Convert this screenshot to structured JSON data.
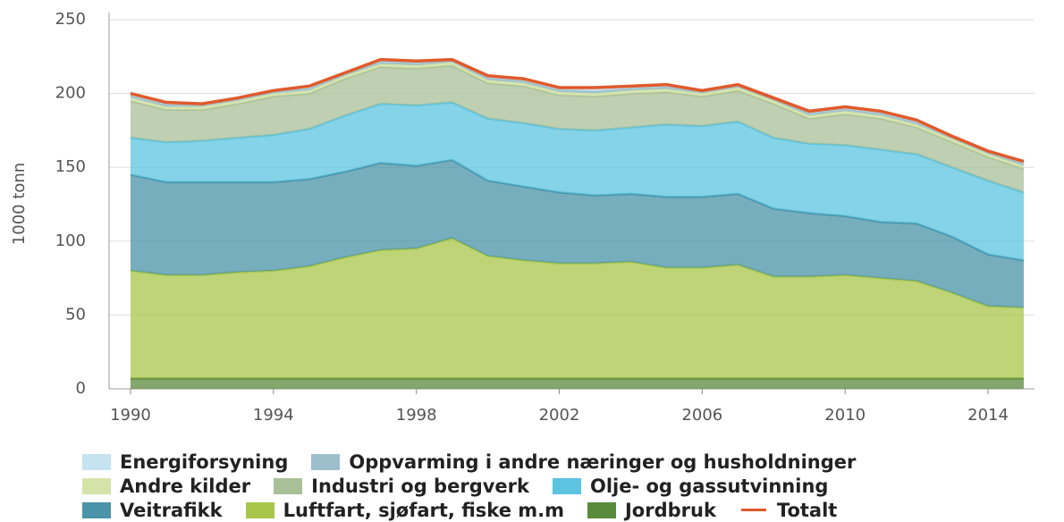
{
  "chart_data": {
    "type": "stacked_area",
    "ylabel": "1000 tonn",
    "x": [
      1990,
      1991,
      1992,
      1993,
      1994,
      1995,
      1996,
      1997,
      1998,
      1999,
      2000,
      2001,
      2002,
      2003,
      2004,
      2005,
      2006,
      2007,
      2008,
      2009,
      2010,
      2011,
      2012,
      2013,
      2014,
      2015
    ],
    "xlim": [
      1989.4,
      2015.3
    ],
    "xticks": [
      1990,
      1994,
      1998,
      2002,
      2006,
      2010,
      2014
    ],
    "ylim": [
      0,
      250
    ],
    "yticks": [
      0,
      50,
      100,
      150,
      200,
      250
    ],
    "grid": true,
    "series": [
      {
        "name": "Jordbruk",
        "color": "#5a8a3c",
        "values": [
          7,
          7,
          7,
          7,
          7,
          7,
          7,
          7,
          7,
          7,
          7,
          7,
          7,
          7,
          7,
          7,
          7,
          7,
          7,
          7,
          7,
          7,
          7,
          7,
          7,
          7
        ]
      },
      {
        "name": "Luftfart, sjøfart, fiske m.m",
        "color": "#a8c64a",
        "values": [
          73,
          70,
          70,
          72,
          73,
          76,
          82,
          87,
          88,
          95,
          83,
          80,
          78,
          78,
          79,
          75,
          75,
          77,
          69,
          69,
          70,
          68,
          66,
          58,
          49,
          48
        ]
      },
      {
        "name": "Veitrafikk",
        "color": "#4a93a8",
        "values": [
          65,
          63,
          63,
          61,
          60,
          59,
          58,
          59,
          56,
          53,
          51,
          50,
          48,
          46,
          46,
          48,
          48,
          48,
          46,
          43,
          40,
          38,
          39,
          38,
          35,
          32
        ]
      },
      {
        "name": "Olje- og gassutvinning",
        "color": "#5cc4e0",
        "values": [
          25,
          27,
          28,
          30,
          32,
          34,
          38,
          40,
          41,
          39,
          42,
          43,
          43,
          44,
          45,
          49,
          48,
          49,
          48,
          47,
          48,
          49,
          47,
          47,
          50,
          46
        ]
      },
      {
        "name": "Industri og bergverk",
        "color": "#a9bf98",
        "values": [
          25,
          22,
          21,
          23,
          26,
          24,
          25,
          25,
          25,
          25,
          24,
          25,
          23,
          23,
          23,
          22,
          20,
          21,
          23,
          17,
          21,
          21,
          18,
          17,
          16,
          16
        ]
      },
      {
        "name": "Andre kilder",
        "color": "#d4e3a8",
        "values": [
          2,
          2,
          2,
          2,
          2,
          2,
          2,
          2,
          2,
          2,
          2,
          2,
          2,
          2,
          2,
          2,
          2,
          2,
          2,
          2,
          2,
          2,
          2,
          2,
          2,
          2
        ]
      },
      {
        "name": "Oppvarming i andre næringer og husholdninger",
        "color": "#9dbfcc",
        "values": [
          1.5,
          1.5,
          1.5,
          1.5,
          1.5,
          1.5,
          1.5,
          1.5,
          1.5,
          1.5,
          1.5,
          1.5,
          1.5,
          1.5,
          1.5,
          1.5,
          1.5,
          1.5,
          1.5,
          1.5,
          1.5,
          1.5,
          1.5,
          1.5,
          1.5,
          1.5
        ]
      },
      {
        "name": "Energiforsyning",
        "color": "#c5e3f0",
        "values": [
          1.5,
          1.5,
          0.5,
          0.5,
          0.5,
          1.5,
          0.5,
          1.5,
          1.5,
          0.5,
          1.5,
          1.5,
          1.5,
          2.5,
          1.5,
          1.5,
          0.5,
          0.5,
          0.5,
          1.5,
          1.5,
          1.5,
          1.5,
          0.5,
          0.5,
          1.5
        ]
      },
      {
        "name": "Totalt",
        "type": "line",
        "color": "#e05a2b",
        "values": [
          200,
          194,
          193,
          197,
          202,
          205,
          214,
          223,
          222,
          223,
          212,
          210,
          204,
          204,
          205,
          206,
          202,
          206,
          197,
          188,
          191,
          188,
          182,
          171,
          161,
          154
        ]
      }
    ]
  }
}
